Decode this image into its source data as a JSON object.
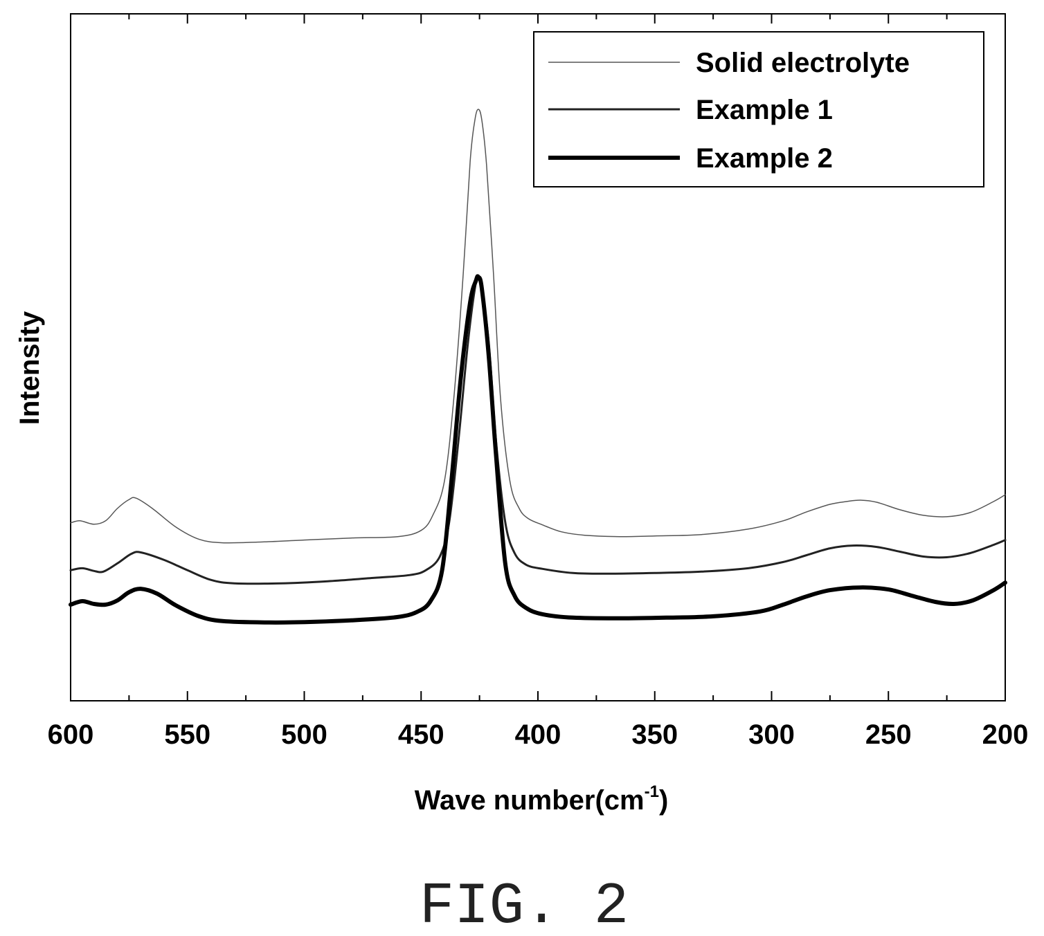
{
  "figure": {
    "caption": "FIG. 2"
  },
  "chart_data": {
    "type": "line",
    "title": "",
    "xlabel": "Wave number(cm",
    "xlabel_sup": "-1",
    "xlabel_close": ")",
    "ylabel": "Intensity",
    "xlim": [
      600,
      200
    ],
    "x_reversed": true,
    "y_ticks_shown": false,
    "grid": false,
    "legend_placement": "top-right",
    "x_ticks": [
      "600",
      "550",
      "500",
      "450",
      "400",
      "350",
      "300",
      "250",
      "200"
    ],
    "series": [
      {
        "name": "Solid electrolyte",
        "color": "#555555",
        "stroke": "thin",
        "points": [
          [
            600,
            25.9
          ],
          [
            596,
            26.2
          ],
          [
            590,
            25.7
          ],
          [
            585,
            26.2
          ],
          [
            580,
            28.0
          ],
          [
            575,
            29.3
          ],
          [
            572,
            29.5
          ],
          [
            565,
            28.0
          ],
          [
            555,
            25.3
          ],
          [
            545,
            23.5
          ],
          [
            535,
            23.0
          ],
          [
            520,
            23.1
          ],
          [
            500,
            23.4
          ],
          [
            480,
            23.7
          ],
          [
            460,
            23.9
          ],
          [
            450,
            24.8
          ],
          [
            445,
            27.0
          ],
          [
            440,
            32.0
          ],
          [
            436,
            44.0
          ],
          [
            432,
            62.0
          ],
          [
            429,
            78.5
          ],
          [
            427,
            84.5
          ],
          [
            425.5,
            86.1
          ],
          [
            424,
            84.5
          ],
          [
            422,
            78.0
          ],
          [
            419,
            62.0
          ],
          [
            416,
            44.0
          ],
          [
            412,
            32.0
          ],
          [
            408,
            28.0
          ],
          [
            404,
            26.5
          ],
          [
            398,
            25.6
          ],
          [
            390,
            24.6
          ],
          [
            380,
            24.1
          ],
          [
            365,
            23.9
          ],
          [
            350,
            24.0
          ],
          [
            330,
            24.2
          ],
          [
            310,
            25.0
          ],
          [
            295,
            26.2
          ],
          [
            285,
            27.5
          ],
          [
            275,
            28.6
          ],
          [
            268,
            29.0
          ],
          [
            262,
            29.2
          ],
          [
            255,
            28.9
          ],
          [
            245,
            27.8
          ],
          [
            235,
            27.0
          ],
          [
            225,
            26.8
          ],
          [
            215,
            27.4
          ],
          [
            205,
            29.0
          ],
          [
            200,
            30.0
          ]
        ]
      },
      {
        "name": "Example 1",
        "color": "#222222",
        "stroke": "medium",
        "points": [
          [
            600,
            19.0
          ],
          [
            595,
            19.3
          ],
          [
            590,
            18.9
          ],
          [
            586,
            18.8
          ],
          [
            580,
            20.0
          ],
          [
            574,
            21.4
          ],
          [
            570,
            21.6
          ],
          [
            560,
            20.5
          ],
          [
            550,
            19.0
          ],
          [
            540,
            17.6
          ],
          [
            530,
            17.1
          ],
          [
            510,
            17.1
          ],
          [
            490,
            17.4
          ],
          [
            470,
            17.9
          ],
          [
            455,
            18.3
          ],
          [
            448,
            19.0
          ],
          [
            442,
            21.0
          ],
          [
            438,
            26.0
          ],
          [
            434,
            38.0
          ],
          [
            430,
            52.0
          ],
          [
            427,
            60.0
          ],
          [
            425.5,
            61.7
          ],
          [
            424,
            60.0
          ],
          [
            421,
            52.0
          ],
          [
            418,
            38.0
          ],
          [
            414,
            26.0
          ],
          [
            410,
            21.5
          ],
          [
            405,
            19.8
          ],
          [
            398,
            19.2
          ],
          [
            385,
            18.6
          ],
          [
            370,
            18.5
          ],
          [
            350,
            18.6
          ],
          [
            330,
            18.8
          ],
          [
            310,
            19.3
          ],
          [
            295,
            20.2
          ],
          [
            285,
            21.2
          ],
          [
            275,
            22.2
          ],
          [
            265,
            22.6
          ],
          [
            255,
            22.4
          ],
          [
            245,
            21.7
          ],
          [
            235,
            21.0
          ],
          [
            225,
            20.9
          ],
          [
            215,
            21.5
          ],
          [
            205,
            22.7
          ],
          [
            200,
            23.4
          ]
        ]
      },
      {
        "name": "Example 2",
        "color": "#000000",
        "stroke": "thick",
        "points": [
          [
            600,
            14.0
          ],
          [
            595,
            14.5
          ],
          [
            590,
            14.1
          ],
          [
            585,
            14.0
          ],
          [
            580,
            14.6
          ],
          [
            575,
            15.8
          ],
          [
            570,
            16.3
          ],
          [
            563,
            15.6
          ],
          [
            555,
            13.9
          ],
          [
            545,
            12.3
          ],
          [
            535,
            11.6
          ],
          [
            515,
            11.4
          ],
          [
            495,
            11.5
          ],
          [
            475,
            11.8
          ],
          [
            460,
            12.2
          ],
          [
            452,
            12.9
          ],
          [
            446,
            14.5
          ],
          [
            441,
            19.0
          ],
          [
            437,
            32.0
          ],
          [
            433,
            47.0
          ],
          [
            429,
            58.0
          ],
          [
            426.5,
            61.2
          ],
          [
            425.5,
            61.7
          ],
          [
            424,
            60.0
          ],
          [
            421,
            50.0
          ],
          [
            418,
            36.0
          ],
          [
            414,
            20.0
          ],
          [
            410,
            15.3
          ],
          [
            405,
            13.5
          ],
          [
            398,
            12.6
          ],
          [
            385,
            12.1
          ],
          [
            365,
            12.0
          ],
          [
            345,
            12.1
          ],
          [
            325,
            12.3
          ],
          [
            305,
            13.0
          ],
          [
            295,
            14.0
          ],
          [
            285,
            15.2
          ],
          [
            275,
            16.1
          ],
          [
            262,
            16.5
          ],
          [
            250,
            16.2
          ],
          [
            240,
            15.3
          ],
          [
            230,
            14.4
          ],
          [
            222,
            14.1
          ],
          [
            214,
            14.6
          ],
          [
            205,
            16.1
          ],
          [
            200,
            17.2
          ]
        ]
      }
    ]
  }
}
